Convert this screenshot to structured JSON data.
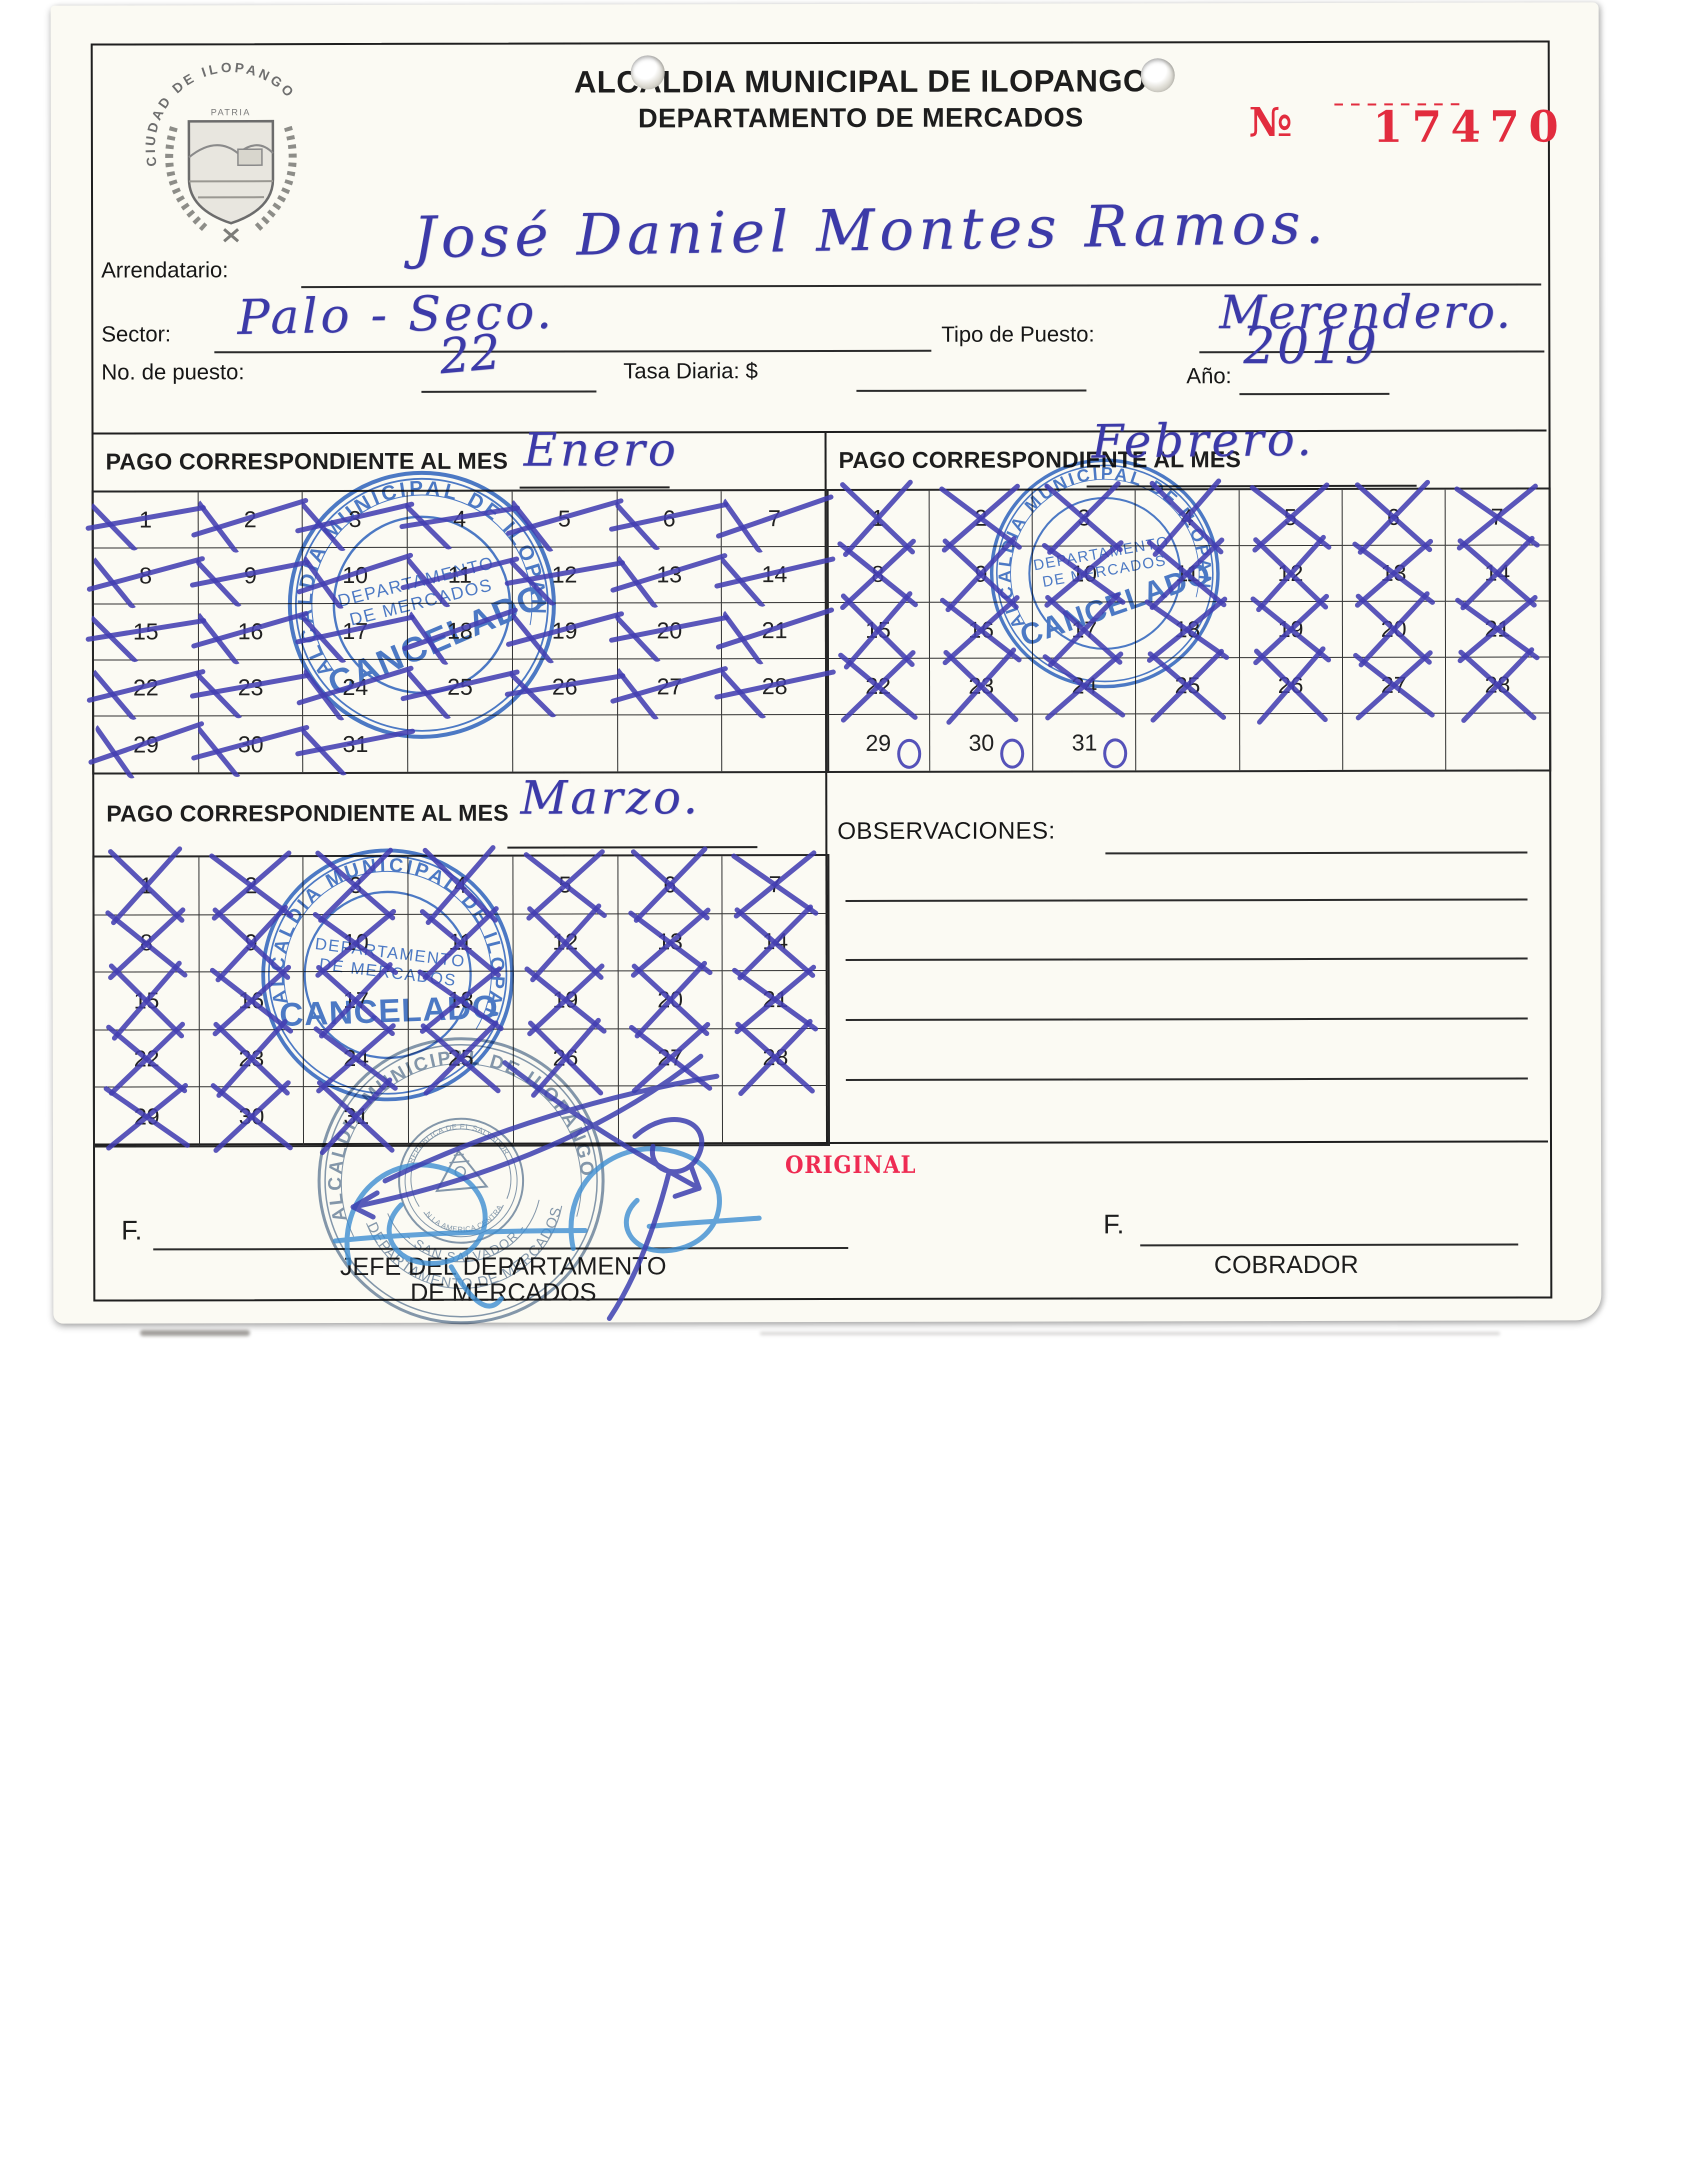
{
  "header": {
    "title_line1": "ALCALDIA MUNICIPAL DE ILOPANGO",
    "title_line2": "DEPARTAMENTO DE MERCADOS",
    "number_label": "№",
    "number_strike": "--------",
    "number_value": "17470",
    "crest": {
      "arc_text": "CIUDAD DE ILOPANGO",
      "motto": "PATRIA"
    }
  },
  "fields": {
    "arrendatario": {
      "label": "Arrendatario:",
      "value": "José Daniel Montes Ramos."
    },
    "sector": {
      "label": "Sector:",
      "value": "Palo - Seco."
    },
    "tipo_puesto": {
      "label": "Tipo de Puesto:",
      "value": "Merendero."
    },
    "no_puesto": {
      "label": "No. de puesto:",
      "value": "22"
    },
    "tasa_diaria": {
      "label": "Tasa Diaria: $",
      "value": ""
    },
    "anio": {
      "label": "Año:",
      "value": "2019"
    }
  },
  "payments": {
    "section_label": "PAGO CORRESPONDIENTE AL MES",
    "months": [
      {
        "name": "Enero",
        "mark_style": "slash",
        "days_marked": [
          1,
          2,
          3,
          4,
          5,
          6,
          7,
          8,
          9,
          10,
          11,
          12,
          13,
          14,
          15,
          16,
          17,
          18,
          19,
          20,
          21,
          22,
          23,
          24,
          25,
          26,
          27,
          28,
          29,
          30,
          31
        ],
        "days_zeroed": []
      },
      {
        "name": "Febrero.",
        "mark_style": "x",
        "days_marked": [
          1,
          2,
          3,
          4,
          5,
          6,
          7,
          8,
          9,
          10,
          11,
          12,
          13,
          14,
          15,
          16,
          17,
          18,
          19,
          20,
          21,
          22,
          23,
          24,
          25,
          26,
          27,
          28
        ],
        "days_zeroed": [
          29,
          30,
          31
        ]
      },
      {
        "name": "Marzo.",
        "mark_style": "x",
        "days_marked": [
          1,
          2,
          3,
          4,
          5,
          6,
          7,
          8,
          9,
          10,
          11,
          12,
          13,
          14,
          15,
          16,
          17,
          18,
          19,
          20,
          21,
          22,
          23,
          24,
          25,
          26,
          27,
          28,
          29,
          30,
          31
        ],
        "days_zeroed": []
      }
    ],
    "grid": {
      "rows": 5,
      "cols": 7,
      "total_days": 31
    }
  },
  "observations": {
    "label": "OBSERVACIONES:"
  },
  "stamps": {
    "cancelado": {
      "org": "ALCALDIA MUNICIPAL DE ILOPANGO",
      "dept_line1": "DEPARTAMENTO",
      "dept_line2": "DE MERCADOS",
      "status": "CANCELADO",
      "ink_color": "#2e64c6"
    },
    "oficial": {
      "arc_top": "ALCALDIA MUNICIPAL DE ILOPANGO",
      "arc_mid": "DEPARTAMENTO DE MERCADOS",
      "arc_bottom": "- SAN SALVADOR -",
      "emblem_top": "REPUBLICA DE EL SALVADOR",
      "emblem_bottom": "EN LA AMERICA CENTRAL",
      "ink_color": "#66809e"
    }
  },
  "footer": {
    "copy_label": "ORIGINAL",
    "sig_prefix_left": "F.",
    "sig_prefix_right": "F.",
    "left_role_line1": "JEFE DEL DEPARTAMENTO",
    "left_role_line2": "DE MERCADOS",
    "right_role": "COBRADOR",
    "accent_red": "#e22c3e"
  }
}
